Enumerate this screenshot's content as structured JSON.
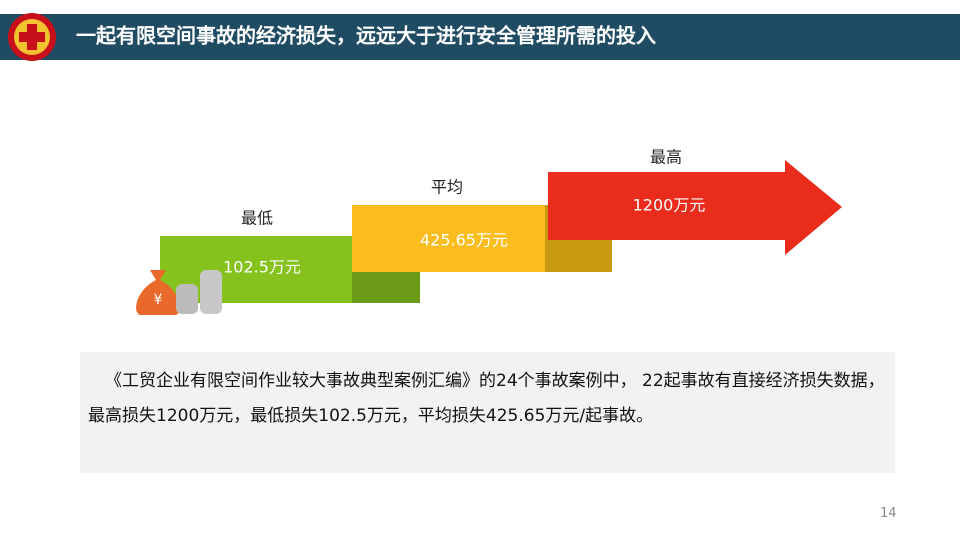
{
  "header": {
    "title": "一起有限空间事故的经济损失，远远大于进行安全管理所需的投入"
  },
  "steps": [
    {
      "label": "最低",
      "value": "102.5万元"
    },
    {
      "label": "平均",
      "value": "425.65万元"
    },
    {
      "label": "最高",
      "value": "1200万元"
    }
  ],
  "paragraph": "《工贸企业有限空间作业较大事故典型案例汇编》的24个事故案例中， 22起事故有直接经济损失数据，最高损失1200万元，最低损失102.5万元，平均损失425.65万元/起事故。",
  "page_number": "14"
}
